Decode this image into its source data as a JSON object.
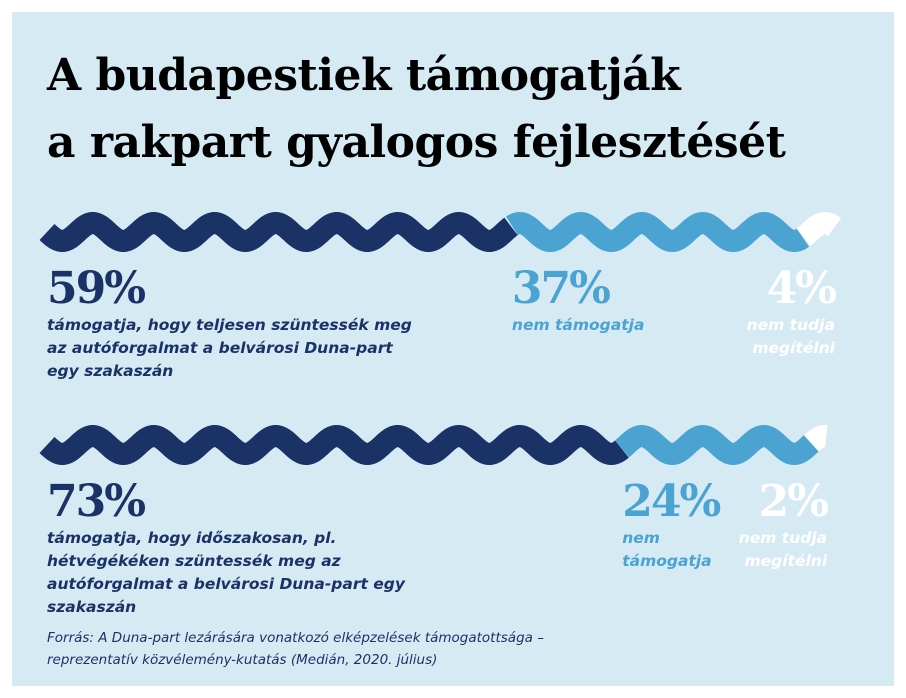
{
  "title": [
    "A budapestiek támogatják",
    "a rakpart gyalogos fejlesztését"
  ],
  "chart_data": [
    {
      "type": "stacked-wave",
      "xlim": [
        0,
        100
      ],
      "series": [
        {
          "name": "támogatja, hogy teljesen szüntessék meg az autóforgalmat a belvárosi Duna-part egy szakaszán",
          "color": "#1b3266",
          "values": [
            59
          ],
          "value_labels": [
            "59%"
          ]
        },
        {
          "name": "nem támogatja",
          "color": "#4aa3d1",
          "values": [
            37
          ],
          "value_labels": [
            "37%"
          ]
        },
        {
          "name": "nem tudja megítélni",
          "color": "#ffffff",
          "values": [
            4
          ],
          "value_labels": [
            "4%"
          ]
        }
      ]
    },
    {
      "type": "stacked-wave",
      "xlim": [
        0,
        100
      ],
      "series": [
        {
          "name": "támogatja, hogy időszakosan, pl. hétvégékéken szüntessék meg az autóforgalmat a belvárosi Duna-part egy szakaszán",
          "color": "#1b3266",
          "values": [
            73
          ],
          "value_labels": [
            "73%"
          ]
        },
        {
          "name": "nem támogatja",
          "color": "#4aa3d1",
          "values": [
            24
          ],
          "value_labels": [
            "24%"
          ]
        },
        {
          "name": "nem tudja megítélni",
          "color": "#ffffff",
          "values": [
            2
          ],
          "value_labels": [
            "2%"
          ]
        }
      ]
    }
  ],
  "source": [
    "Forrás: A Duna-part lezárására vonatkozó elképzelések támogatottsága  –",
    "reprezentatív közvélemény-kutatás (Medián, 2020. július)"
  ]
}
